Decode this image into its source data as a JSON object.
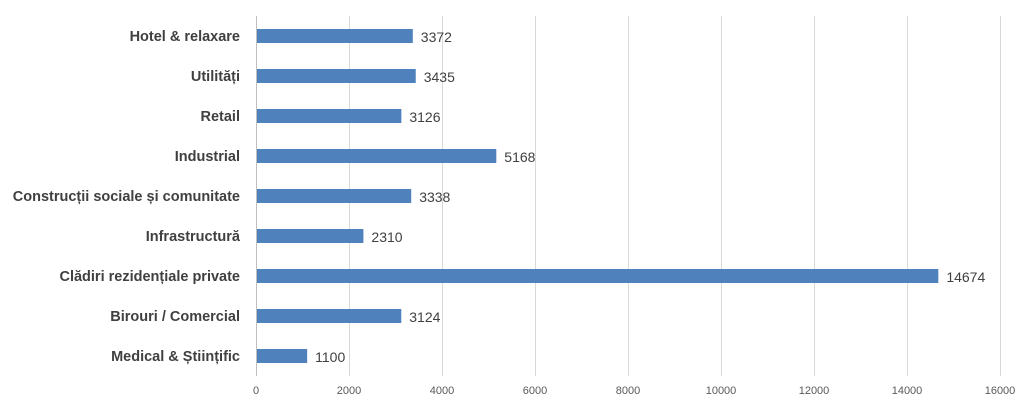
{
  "chart_data": {
    "type": "bar",
    "orientation": "horizontal",
    "categories": [
      "Hotel & relaxare",
      "Utilități",
      "Retail",
      "Industrial",
      "Construcții sociale și comunitate",
      "Infrastructură",
      "Clădiri rezidențiale private",
      "Birouri / Comercial",
      "Medical & Științific"
    ],
    "values": [
      3372,
      3435,
      3126,
      5168,
      3338,
      2310,
      14674,
      3124,
      1100
    ],
    "xlim": [
      0,
      16000
    ],
    "xticks": [
      0,
      2000,
      4000,
      6000,
      8000,
      10000,
      12000,
      14000,
      16000
    ],
    "grid": "vertical",
    "legend": "none",
    "bar_color": "#4f81bd"
  }
}
